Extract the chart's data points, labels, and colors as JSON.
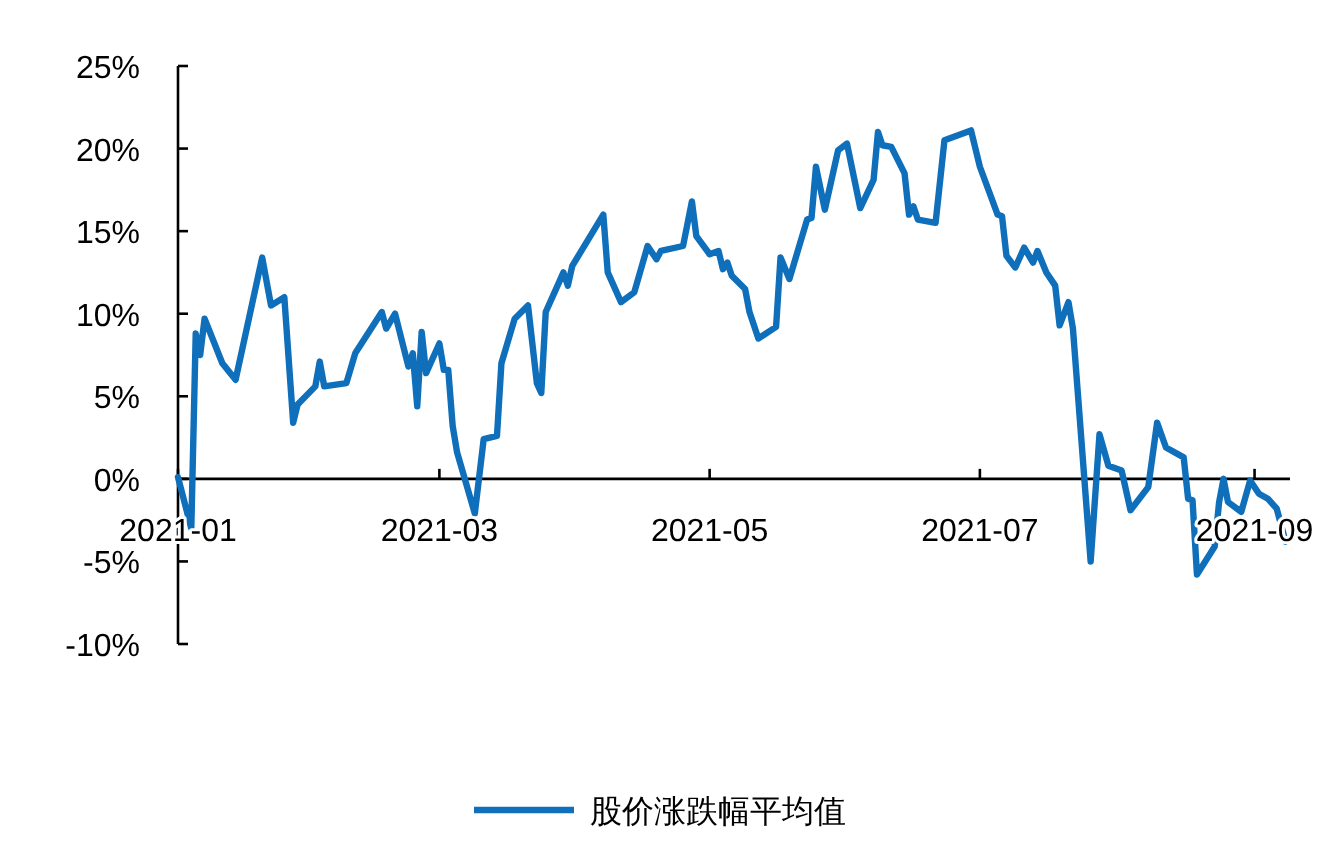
{
  "chart_data": {
    "type": "line",
    "legend": "bottom",
    "xlim": [
      "2021-01-01",
      "2021-09-09"
    ],
    "xticks": [
      "2021-01",
      "2021-03",
      "2021-05",
      "2021-07",
      "2021-09"
    ],
    "ylim": [
      -10,
      25
    ],
    "yticks": [
      {
        "value": 25,
        "label": "25%"
      },
      {
        "value": 20,
        "label": "20%"
      },
      {
        "value": 15,
        "label": "15%"
      },
      {
        "value": 10,
        "label": "10%"
      },
      {
        "value": 5,
        "label": "5%"
      },
      {
        "value": 0,
        "label": "0%"
      },
      {
        "value": -5,
        "label": "-5%"
      },
      {
        "value": -10,
        "label": "-10%"
      }
    ],
    "x": [
      "2021-01-01",
      "2021-01-04",
      "2021-01-05",
      "2021-01-06",
      "2021-01-07",
      "2021-01-11",
      "2021-01-14",
      "2021-01-20",
      "2021-01-22",
      "2021-01-25",
      "2021-01-27",
      "2021-01-28",
      "2021-02-01",
      "2021-02-02",
      "2021-02-03",
      "2021-02-08",
      "2021-02-10",
      "2021-02-16",
      "2021-02-17",
      "2021-02-19",
      "2021-02-22",
      "2021-02-23",
      "2021-02-24",
      "2021-02-25",
      "2021-02-26",
      "2021-03-01",
      "2021-03-02",
      "2021-03-03",
      "2021-03-04",
      "2021-03-05",
      "2021-03-09",
      "2021-03-11",
      "2021-03-14",
      "2021-03-15",
      "2021-03-18",
      "2021-03-21",
      "2021-03-23",
      "2021-03-24",
      "2021-03-25",
      "2021-03-28",
      "2021-03-29",
      "2021-03-30",
      "2021-03-31",
      "2021-04-07",
      "2021-04-08",
      "2021-04-11",
      "2021-04-14",
      "2021-04-17",
      "2021-04-19",
      "2021-04-20",
      "2021-04-25",
      "2021-04-27",
      "2021-04-28",
      "2021-05-01",
      "2021-05-03",
      "2021-05-04",
      "2021-05-05",
      "2021-05-06",
      "2021-05-09",
      "2021-05-10",
      "2021-05-12",
      "2021-05-16",
      "2021-05-17",
      "2021-05-19",
      "2021-05-23",
      "2021-05-24",
      "2021-05-25",
      "2021-05-27",
      "2021-05-30",
      "2021-06-01",
      "2021-06-04",
      "2021-06-07",
      "2021-06-08",
      "2021-06-09",
      "2021-06-11",
      "2021-06-14",
      "2021-06-15",
      "2021-06-16",
      "2021-06-17",
      "2021-06-21",
      "2021-06-23",
      "2021-06-25",
      "2021-06-29",
      "2021-07-01",
      "2021-07-05",
      "2021-07-06",
      "2021-07-07",
      "2021-07-09",
      "2021-07-11",
      "2021-07-13",
      "2021-07-14",
      "2021-07-16",
      "2021-07-18",
      "2021-07-19",
      "2021-07-21",
      "2021-07-22",
      "2021-07-26",
      "2021-07-28",
      "2021-07-30",
      "2021-08-02",
      "2021-08-04",
      "2021-08-08",
      "2021-08-10",
      "2021-08-12",
      "2021-08-16",
      "2021-08-17",
      "2021-08-18",
      "2021-08-19",
      "2021-08-23",
      "2021-08-24",
      "2021-08-25",
      "2021-08-26",
      "2021-08-29",
      "2021-08-31",
      "2021-09-02",
      "2021-09-04",
      "2021-09-06",
      "2021-09-08"
    ],
    "series": [
      {
        "name": "股价涨跌幅平均值",
        "color": "#0f6fba",
        "values": [
          0.1,
          -3,
          8.8,
          7.5,
          9.7,
          7.0,
          6.0,
          13.4,
          10.5,
          11.0,
          3.4,
          4.5,
          5.6,
          7.1,
          5.6,
          5.8,
          7.6,
          10.1,
          9.1,
          10.0,
          6.8,
          7.6,
          4.4,
          8.9,
          6.4,
          8.2,
          6.6,
          6.6,
          3.2,
          1.6,
          -2.1,
          2.4,
          2.6,
          7.0,
          9.7,
          10.5,
          5.8,
          5.2,
          10.1,
          11.9,
          12.5,
          11.7,
          12.9,
          16.0,
          12.5,
          10.7,
          11.3,
          14.1,
          13.3,
          13.8,
          14.1,
          16.8,
          14.7,
          13.6,
          13.8,
          12.7,
          13.1,
          12.3,
          11.5,
          10.1,
          8.5,
          9.2,
          13.4,
          12.1,
          15.7,
          15.8,
          18.9,
          16.3,
          19.9,
          20.3,
          16.4,
          18.1,
          21.0,
          20.2,
          20.1,
          18.5,
          16.0,
          16.5,
          15.7,
          15.5,
          20.5,
          20.7,
          21.1,
          18.9,
          16.0,
          15.9,
          13.5,
          12.8,
          14.0,
          13.1,
          13.8,
          12.5,
          11.7,
          9.3,
          10.7,
          9.1,
          -5.0,
          2.7,
          0.8,
          0.5,
          -1.9,
          -0.5,
          3.4,
          1.9,
          1.3,
          -1.2,
          -1.3,
          -5.8,
          -4.1,
          -1.4,
          0.0,
          -1.4,
          -2.0,
          -0.1,
          -0.9,
          -1.2,
          -1.8,
          -3.8
        ]
      }
    ]
  }
}
